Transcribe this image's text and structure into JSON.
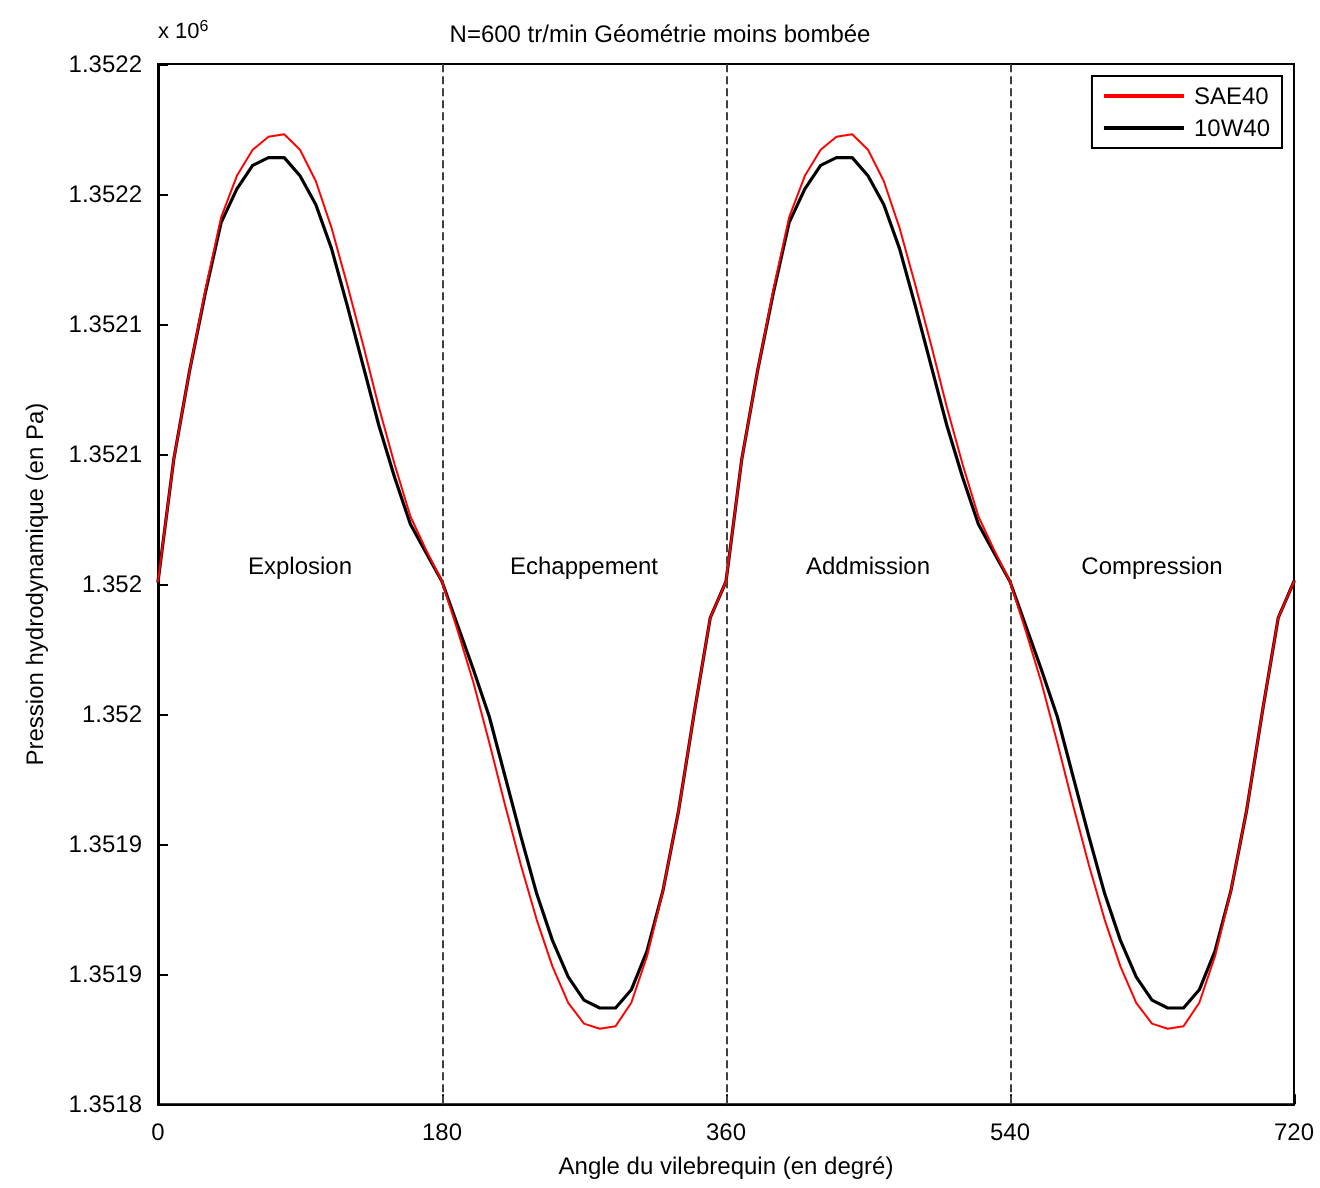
{
  "chart_data": {
    "type": "line",
    "title": "N=600 tr/min Géométrie moins bombée",
    "xlabel": "Angle du vilebrequin (en degré)",
    "ylabel": "Pression hydrodynamique (en Pa)",
    "x": [
      0,
      10,
      20,
      30,
      40,
      50,
      60,
      70,
      80,
      90,
      100,
      110,
      120,
      130,
      140,
      150,
      160,
      170,
      180,
      190,
      200,
      210,
      220,
      230,
      240,
      250,
      260,
      270,
      280,
      290,
      300,
      310,
      320,
      330,
      340,
      350,
      360,
      370,
      380,
      390,
      400,
      410,
      420,
      430,
      440,
      450,
      460,
      470,
      480,
      490,
      500,
      510,
      520,
      530,
      540,
      550,
      560,
      570,
      580,
      590,
      600,
      610,
      620,
      630,
      640,
      650,
      660,
      670,
      680,
      690,
      700,
      710,
      720
    ],
    "series": [
      {
        "name": "SAE40",
        "color": "#ff0000",
        "values": [
          1.352001,
          1.352048,
          1.352082,
          1.352113,
          1.352141,
          1.352157,
          1.352167,
          1.352172,
          1.352173,
          1.352167,
          1.352155,
          1.352137,
          1.352115,
          1.352092,
          1.352068,
          1.352046,
          1.352026,
          1.352013,
          1.352001,
          1.351982,
          1.351962,
          1.351939,
          1.351915,
          1.351892,
          1.351871,
          1.351853,
          1.351839,
          1.351831,
          1.351829,
          1.35183,
          1.351839,
          1.351857,
          1.351882,
          1.351913,
          1.351951,
          1.351987,
          1.352001,
          1.352048,
          1.352082,
          1.352113,
          1.352141,
          1.352157,
          1.352167,
          1.352172,
          1.352173,
          1.352167,
          1.352155,
          1.352137,
          1.352115,
          1.352092,
          1.352068,
          1.352046,
          1.352026,
          1.352013,
          1.352001,
          1.351982,
          1.351962,
          1.351939,
          1.351915,
          1.351892,
          1.351871,
          1.351853,
          1.351839,
          1.351831,
          1.351829,
          1.35183,
          1.351839,
          1.351857,
          1.351882,
          1.351913,
          1.351951,
          1.351987,
          1.352001
        ]
      },
      {
        "name": "10W40",
        "color": "#000000",
        "values": [
          1.352001,
          1.352048,
          1.352082,
          1.352112,
          1.352139,
          1.352152,
          1.352161,
          1.352164,
          1.352164,
          1.352157,
          1.352146,
          1.352129,
          1.352107,
          1.352084,
          1.352061,
          1.352041,
          1.352023,
          1.352012,
          1.352001,
          1.351984,
          1.351967,
          1.351949,
          1.351926,
          1.351903,
          1.351881,
          1.351863,
          1.351849,
          1.35184,
          1.351837,
          1.351837,
          1.351844,
          1.351859,
          1.351882,
          1.351913,
          1.351951,
          1.351987,
          1.352001,
          1.352048,
          1.352082,
          1.352112,
          1.352139,
          1.352152,
          1.352161,
          1.352164,
          1.352164,
          1.352157,
          1.352146,
          1.352129,
          1.352107,
          1.352084,
          1.352061,
          1.352041,
          1.352023,
          1.352012,
          1.352001,
          1.351984,
          1.351967,
          1.351949,
          1.351926,
          1.351903,
          1.351881,
          1.351863,
          1.351849,
          1.35184,
          1.351837,
          1.351837,
          1.351844,
          1.351859,
          1.351882,
          1.351913,
          1.351951,
          1.351987,
          1.352001
        ]
      }
    ],
    "xlim": [
      0,
      720
    ],
    "xticks": [
      0,
      180,
      360,
      540,
      720
    ],
    "ylim": [
      1.3518,
      1.3522
    ],
    "yticks": [
      {
        "value": 1.3518,
        "label": "1.3518"
      },
      {
        "value": 1.35185,
        "label": "1.3519"
      },
      {
        "value": 1.3519,
        "label": "1.3519"
      },
      {
        "value": 1.35195,
        "label": "1.352"
      },
      {
        "value": 1.352,
        "label": "1.352"
      },
      {
        "value": 1.35205,
        "label": "1.3521"
      },
      {
        "value": 1.3521,
        "label": "1.3521"
      },
      {
        "value": 1.35215,
        "label": "1.3522"
      },
      {
        "value": 1.3522,
        "label": "1.3522"
      }
    ],
    "ref_lines": [
      {
        "axis": "x",
        "value": 180,
        "label": null,
        "color": "#404040",
        "line_style": "dashed"
      },
      {
        "axis": "x",
        "value": 360,
        "label": null,
        "color": "#404040",
        "line_style": "dashed"
      },
      {
        "axis": "x",
        "value": 540,
        "label": null,
        "color": "#404040",
        "line_style": "dashed"
      }
    ],
    "annotations": [
      "x 10$^{6}$",
      "Explosion",
      "Echappement",
      "Addmission",
      "Compression"
    ],
    "grid": false,
    "legend": "top right",
    "marker": "none",
    "line_style": "solid"
  }
}
